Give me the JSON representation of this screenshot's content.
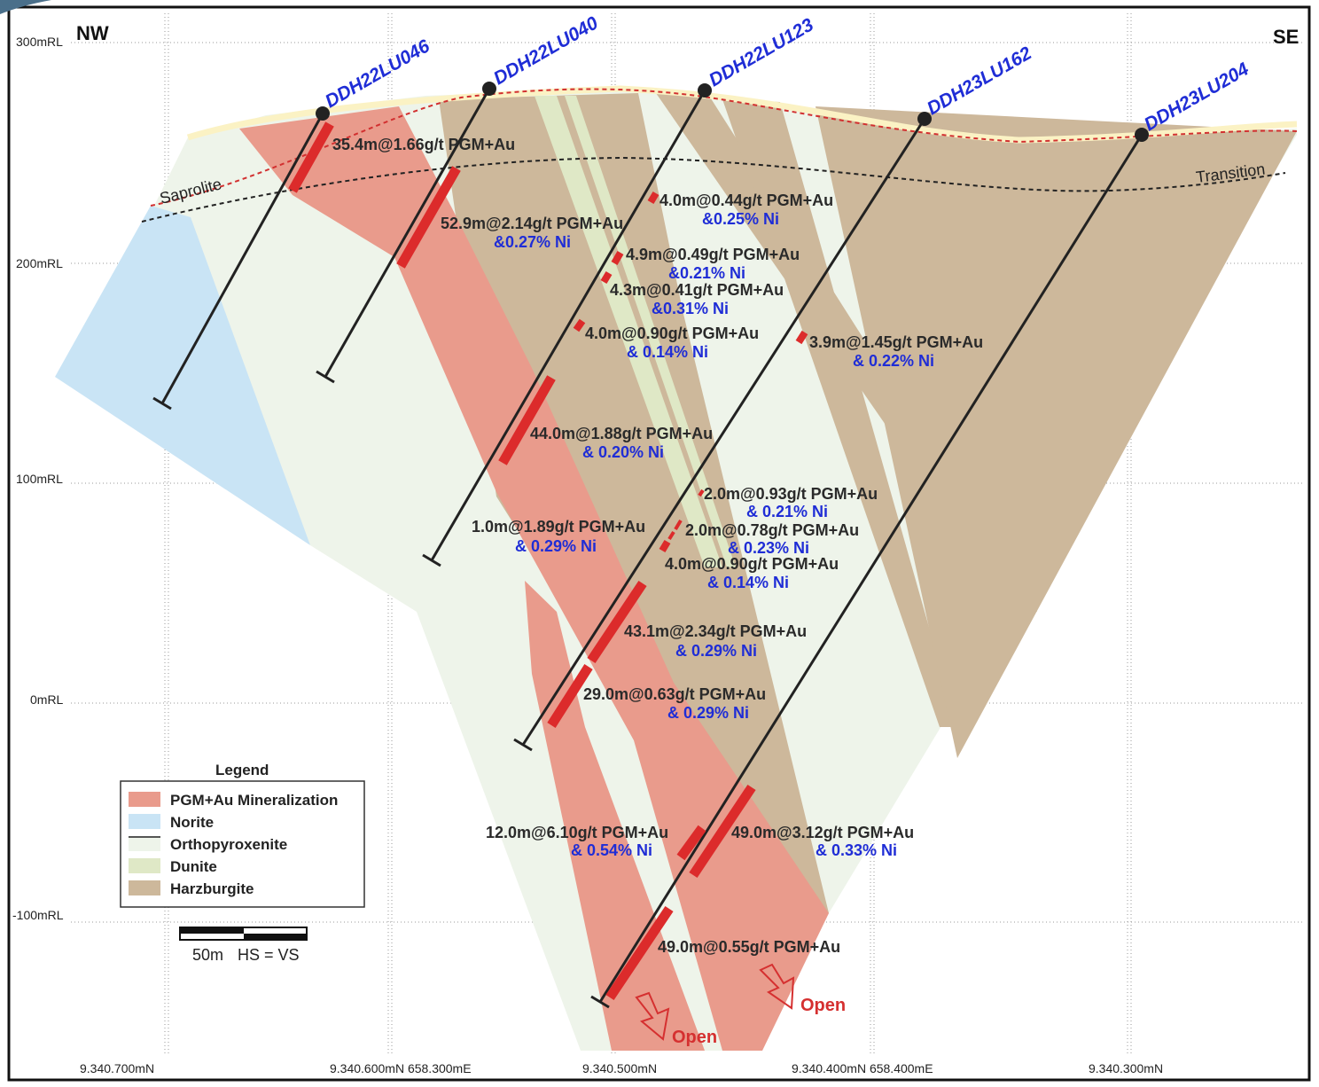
{
  "direction_labels": {
    "left": "NW",
    "right": "SE"
  },
  "rl_labels": [
    "300mRL",
    "200mRL",
    "100mRL",
    "0mRL",
    "-100mRL"
  ],
  "grid_labels": [
    "9.340.700mN",
    "9.340.600mN 658.300mE",
    "9.340.500mN",
    "9.340.400mN 658.400mE",
    "9.340.300mN"
  ],
  "zone_labels": {
    "saprolite": "Saprolite",
    "transition": "Transition"
  },
  "drillholes": [
    "DDH22LU046",
    "DDH22LU040",
    "DDH22LU123",
    "DDH23LU162",
    "DDH23LU204"
  ],
  "intercepts": [
    {
      "line1": "35.4m@1.66g/t PGM+Au",
      "line2": ""
    },
    {
      "line1": "52.9m@2.14g/t PGM+Au",
      "line2": "&0.27% Ni"
    },
    {
      "line1": "4.0m@0.44g/t PGM+Au",
      "line2": "&0.25% Ni"
    },
    {
      "line1": "4.9m@0.49g/t PGM+Au",
      "line2": "&0.21% Ni"
    },
    {
      "line1": "4.3m@0.41g/t PGM+Au",
      "line2": "&0.31% Ni"
    },
    {
      "line1": "4.0m@0.90g/t PGM+Au",
      "line2": "& 0.14% Ni"
    },
    {
      "line1": "3.9m@1.45g/t PGM+Au",
      "line2": "& 0.22% Ni"
    },
    {
      "line1": "44.0m@1.88g/t PGM+Au",
      "line2": "& 0.20% Ni"
    },
    {
      "line1": "2.0m@0.93g/t PGM+Au",
      "line2": "& 0.21% Ni"
    },
    {
      "line1": "1.0m@1.89g/t PGM+Au",
      "line2": "& 0.29% Ni"
    },
    {
      "line1": "2.0m@0.78g/t PGM+Au",
      "line2": "& 0.23% Ni"
    },
    {
      "line1": "4.0m@0.90g/t PGM+Au",
      "line2": "& 0.14% Ni"
    },
    {
      "line1": "43.1m@2.34g/t PGM+Au",
      "line2": "& 0.29% Ni"
    },
    {
      "line1": "29.0m@0.63g/t PGM+Au",
      "line2": "& 0.29% Ni"
    },
    {
      "line1": "12.0m@6.10g/t PGM+Au",
      "line2": "& 0.54% Ni"
    },
    {
      "line1": "49.0m@3.12g/t PGM+Au",
      "line2": "& 0.33% Ni"
    },
    {
      "line1": "49.0m@0.55g/t PGM+Au",
      "line2": ""
    }
  ],
  "open_labels": [
    "Open",
    "Open"
  ],
  "legend": {
    "title": "Legend",
    "items": [
      {
        "label": "PGM+Au Mineralization",
        "color": "#e99b8c"
      },
      {
        "label": "Norite",
        "color": "#c9e4f5"
      },
      {
        "label": "Orthopyroxenite",
        "color": "#eef4ea"
      },
      {
        "label": "Dunite",
        "color": "#dfe8c6"
      },
      {
        "label": "Harzburgite",
        "color": "#cdb89b"
      }
    ]
  },
  "scale_bar": {
    "label": "50m",
    "note": "HS = VS"
  }
}
